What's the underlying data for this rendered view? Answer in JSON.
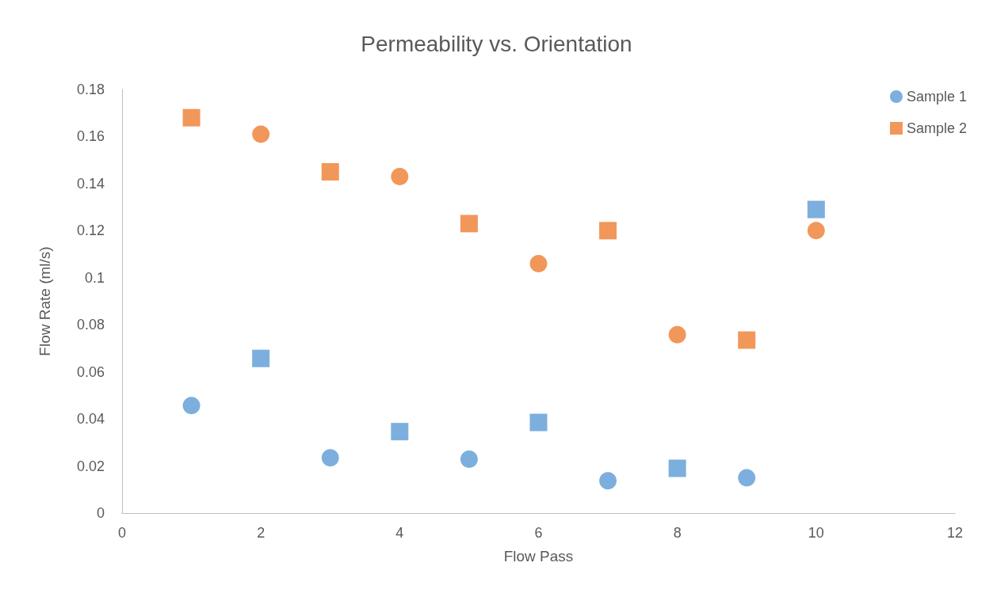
{
  "chart_data": {
    "type": "scatter",
    "title": "Permeability vs. Orientation",
    "xlabel": "Flow Pass",
    "ylabel": "Flow Rate (ml/s)",
    "xlim": [
      0,
      12
    ],
    "xticks": [
      0,
      2,
      4,
      6,
      8,
      10,
      12
    ],
    "ylim": [
      0,
      0.18
    ],
    "yticks": [
      0,
      0.02,
      0.04,
      0.06,
      0.08,
      0.1,
      0.12,
      0.14,
      0.16,
      0.18
    ],
    "grid": false,
    "legend": "top right",
    "series": [
      {
        "name": "Sample 1",
        "color": "#5b9bd5",
        "marker": "circle",
        "x": [
          1,
          3,
          5,
          7,
          9
        ],
        "values": [
          0.0457,
          0.0235,
          0.0229,
          0.0137,
          0.015
        ]
      },
      {
        "name": "Sample 2",
        "color": "#ed7d31",
        "marker": "square",
        "x": [
          1,
          3,
          5,
          7,
          9
        ],
        "values": [
          0.168,
          0.145,
          0.123,
          0.12,
          0.0735
        ]
      },
      {
        "color": "#5b9bd5",
        "marker": "square",
        "x": [
          2,
          4,
          6,
          8,
          10
        ],
        "values": [
          0.0657,
          0.0346,
          0.0385,
          0.019,
          0.129
        ]
      },
      {
        "color": "#ed7d31",
        "marker": "circle",
        "x": [
          2,
          4,
          6,
          8,
          10
        ],
        "values": [
          0.161,
          0.143,
          0.106,
          0.0758,
          0.12
        ]
      }
    ]
  }
}
